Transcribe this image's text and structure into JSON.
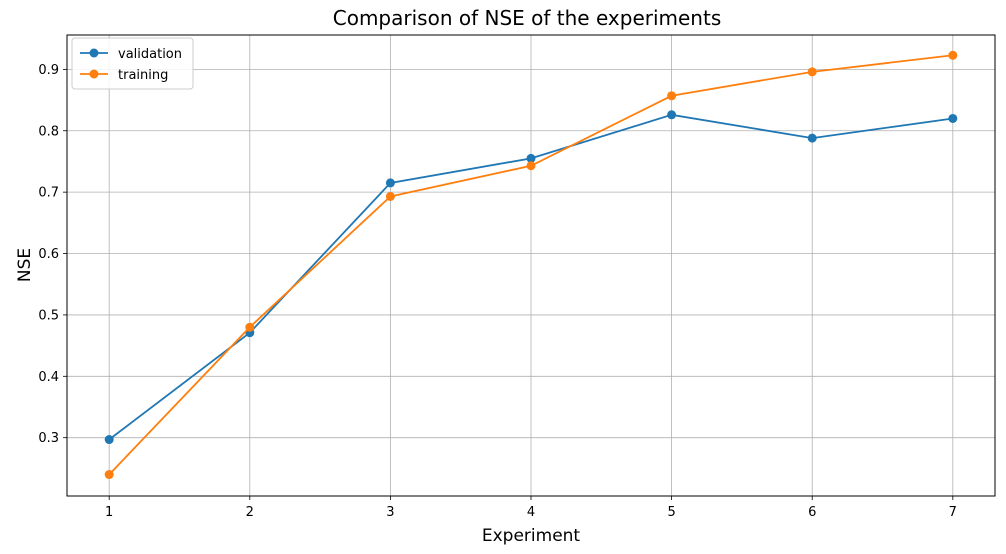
{
  "chart_data": {
    "type": "line",
    "title": "Comparison of NSE of the experiments",
    "xlabel": "Experiment",
    "ylabel": "NSE",
    "x": [
      1,
      2,
      3,
      4,
      5,
      6,
      7
    ],
    "xlim": [
      0.7,
      7.3
    ],
    "ylim": [
      0.205,
      0.956
    ],
    "xticks": [
      1,
      2,
      3,
      4,
      5,
      6,
      7
    ],
    "yticks": [
      0.3,
      0.4,
      0.5,
      0.6,
      0.7,
      0.8,
      0.9
    ],
    "grid": true,
    "legend_position": "top-left",
    "series": [
      {
        "name": "validation",
        "color": "#1f77b4",
        "marker": "circle",
        "values": [
          0.297,
          0.471,
          0.715,
          0.755,
          0.826,
          0.788,
          0.82
        ]
      },
      {
        "name": "training",
        "color": "#ff7f0e",
        "marker": "circle",
        "values": [
          0.24,
          0.48,
          0.693,
          0.743,
          0.857,
          0.896,
          0.923
        ]
      }
    ]
  }
}
